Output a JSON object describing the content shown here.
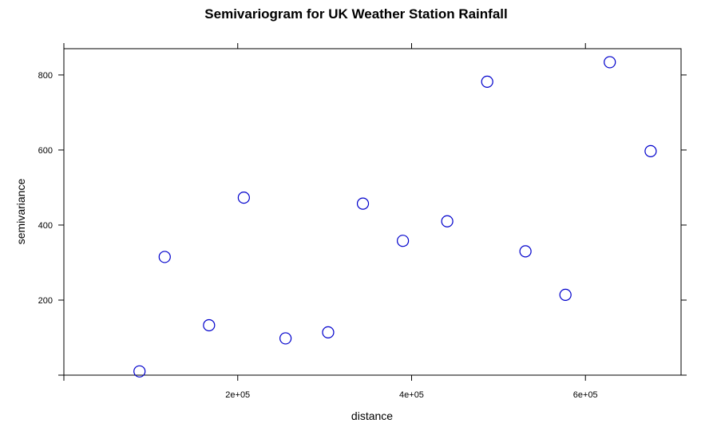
{
  "chart_data": {
    "type": "scatter",
    "title": "Semivariogram for UK Weather Station Rainfall",
    "xlabel": "distance",
    "ylabel": "semivariance",
    "xlim": [
      0,
      710000
    ],
    "ylim": [
      0,
      870
    ],
    "x_ticks": [
      {
        "value": 200000,
        "label": "2e+05"
      },
      {
        "value": 400000,
        "label": "4e+05"
      },
      {
        "value": 600000,
        "label": "6e+05"
      }
    ],
    "y_ticks": [
      {
        "value": 200,
        "label": "200"
      },
      {
        "value": 400,
        "label": "400"
      },
      {
        "value": 600,
        "label": "600"
      },
      {
        "value": 800,
        "label": "800"
      }
    ],
    "grid": false,
    "legend": "none",
    "marker": "open-circle",
    "color": "#0000cc",
    "points": [
      {
        "x": 87000,
        "y": 10
      },
      {
        "x": 116000,
        "y": 315
      },
      {
        "x": 167000,
        "y": 133
      },
      {
        "x": 207000,
        "y": 473
      },
      {
        "x": 255000,
        "y": 98
      },
      {
        "x": 304000,
        "y": 114
      },
      {
        "x": 344000,
        "y": 457
      },
      {
        "x": 390000,
        "y": 358
      },
      {
        "x": 441000,
        "y": 410
      },
      {
        "x": 487000,
        "y": 782
      },
      {
        "x": 531000,
        "y": 330
      },
      {
        "x": 577000,
        "y": 214
      },
      {
        "x": 628000,
        "y": 834
      },
      {
        "x": 675000,
        "y": 597
      }
    ]
  }
}
